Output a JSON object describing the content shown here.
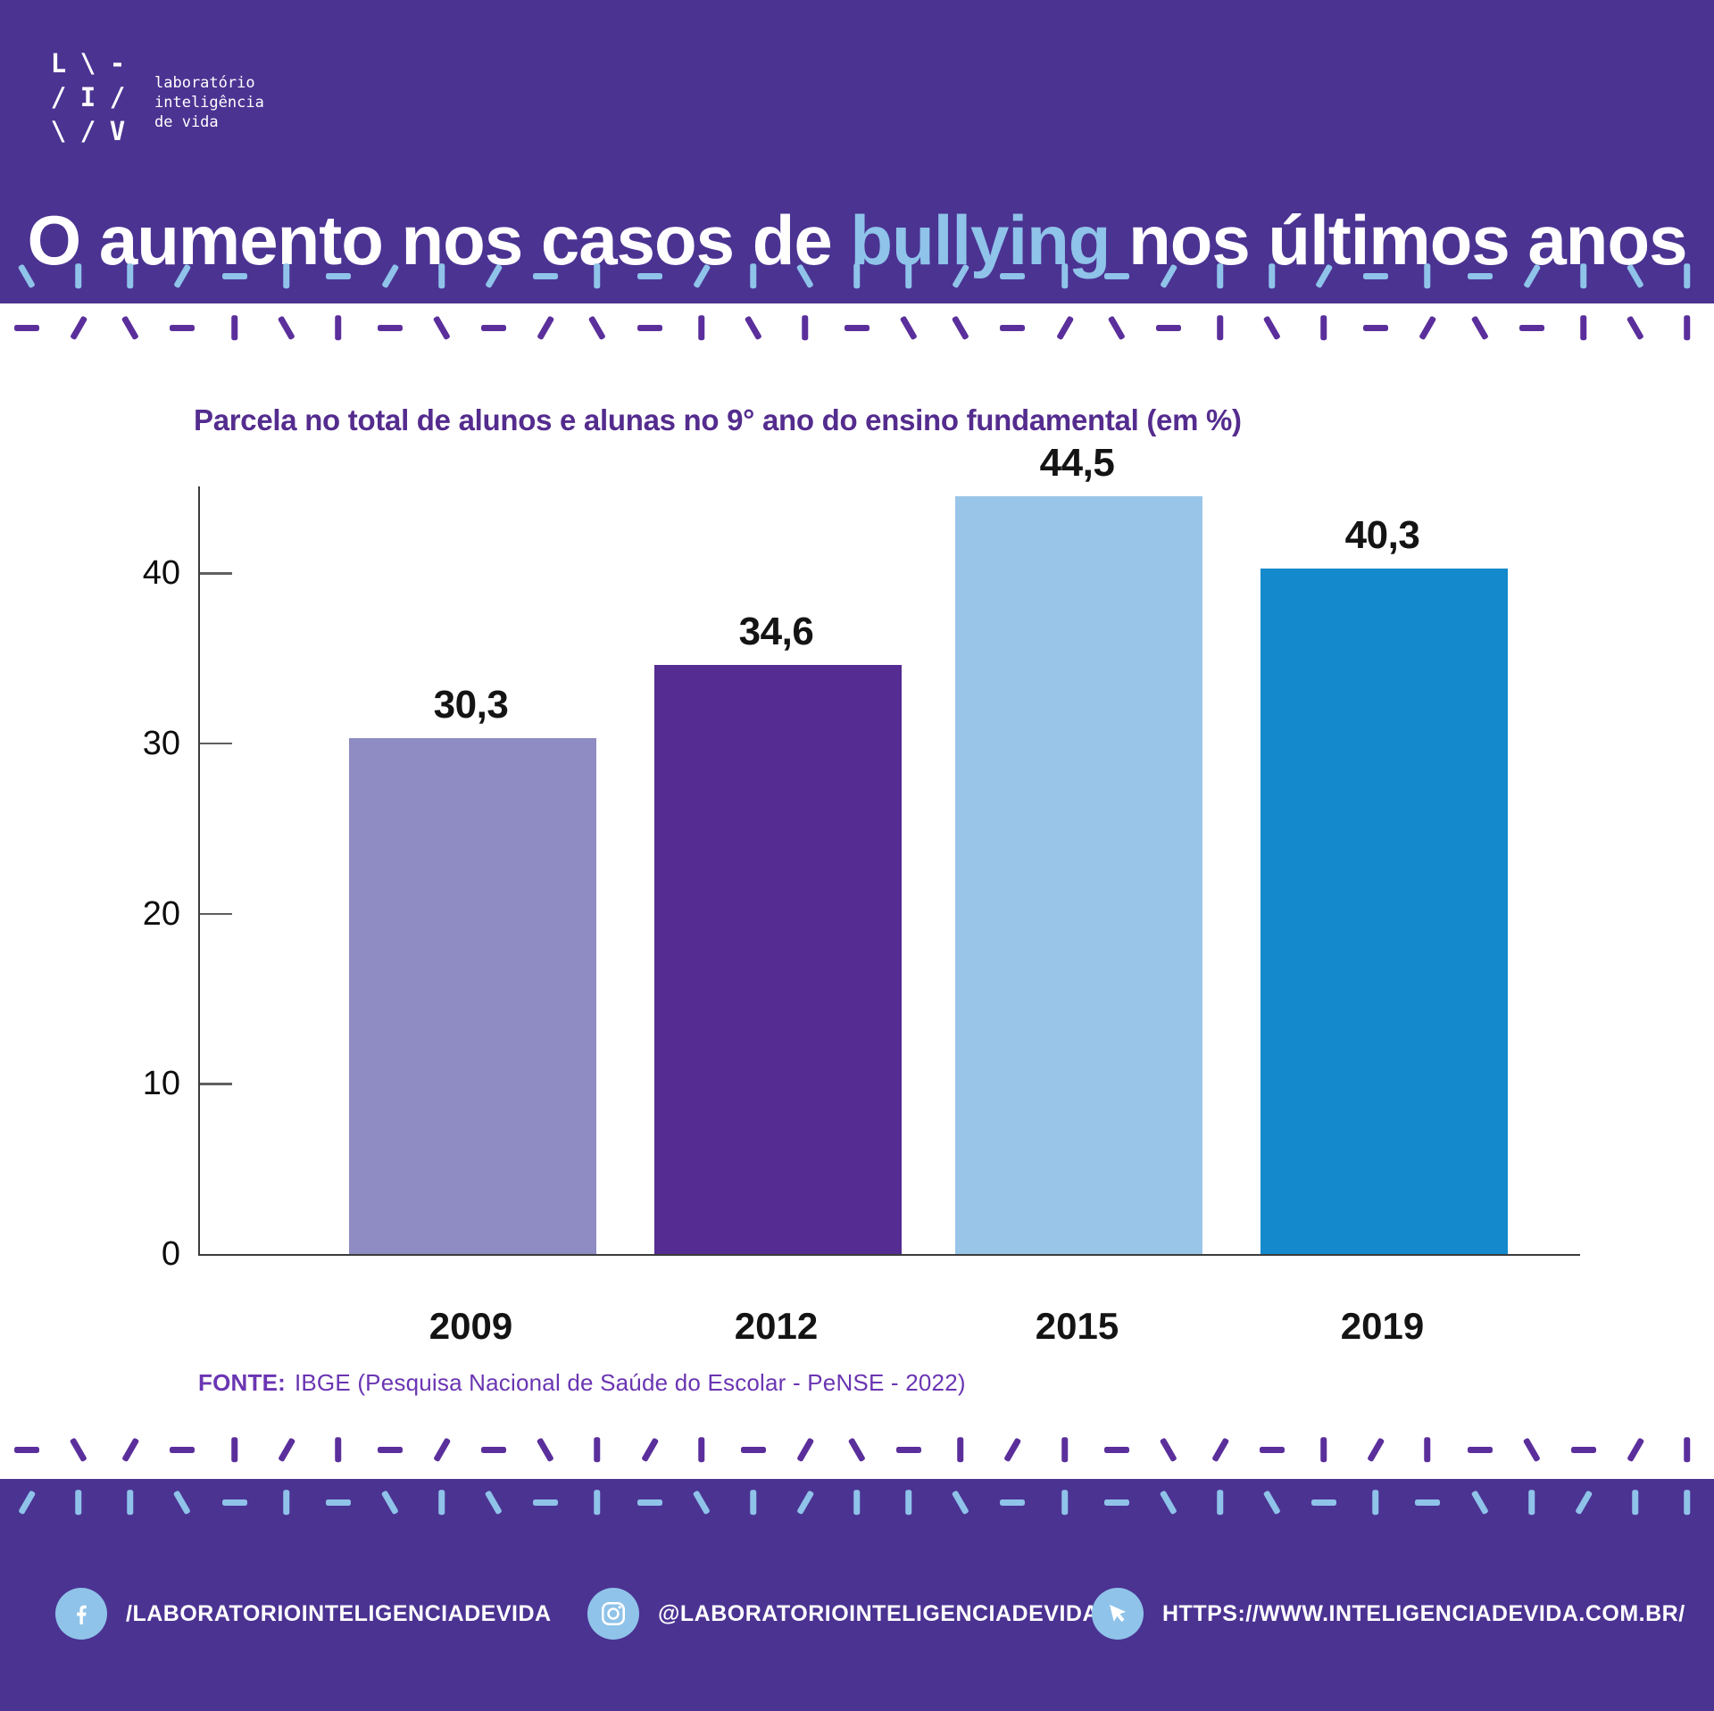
{
  "brand": {
    "logo_rows": [
      [
        "L",
        "\\",
        "-"
      ],
      [
        "/",
        "I",
        "/"
      ],
      [
        "\\",
        "/",
        "V"
      ]
    ],
    "logo_text_lines": [
      "laboratório",
      "inteligência",
      "de vida"
    ]
  },
  "header": {
    "title_prefix": "O aumento nos casos de ",
    "title_highlight": "bullying",
    "title_suffix": " nos últimos anos"
  },
  "decor": {
    "row_top_blue": "\\||/-|-/|/-|-/|\\||/-|-/||/-|-/|\\|",
    "row_top_purple": "-/\\-|\\|-\\-/\\-|\\|-\\\\-/\\-|\\|-/\\-|\\|",
    "row_bottom_purple": "-\\/-|/|-/-\\|/|-/\\-|/|-\\/-|/|-\\-/|",
    "row_bottom_blue": "/||\\-|-\\|\\-|-\\|/||\\-|-\\|\\-|-\\|/||"
  },
  "chart_data": {
    "type": "bar",
    "title": "Parcela no total de alunos e alunas no 9° ano do ensino fundamental (em %)",
    "categories": [
      "2009",
      "2012",
      "2015",
      "2019"
    ],
    "values": [
      30.3,
      34.6,
      44.5,
      40.3
    ],
    "value_labels": [
      "30,3",
      "34,6",
      "44,5",
      "40,3"
    ],
    "bar_colors": [
      "#8E8CC2",
      "#552C92",
      "#99C5E8",
      "#1489CC"
    ],
    "yticks": [
      0,
      10,
      20,
      30,
      40
    ],
    "ylim": [
      0,
      45.1
    ],
    "xlabel": "",
    "ylabel": "",
    "grid": false,
    "legend": null
  },
  "source": {
    "label": "FONTE:",
    "text": "IBGE (Pesquisa Nacional de Saúde do Escolar - PeNSE - 2022)"
  },
  "footer": {
    "facebook_text": "/LABORATORIOINTELIGENCIADEVIDA",
    "instagram_text": "@LABORATORIOINTELIGENCIADEVIDA",
    "website_text": "HTTPS://WWW.INTELIGENCIADEVIDA.COM.BR/"
  },
  "colors": {
    "background_purple": "#4B3392",
    "accent_light_blue": "#8FC3E9",
    "dash_purple": "#5B2F9B",
    "chart_title_purple": "#542C8E",
    "source_purple": "#6A35B2"
  }
}
